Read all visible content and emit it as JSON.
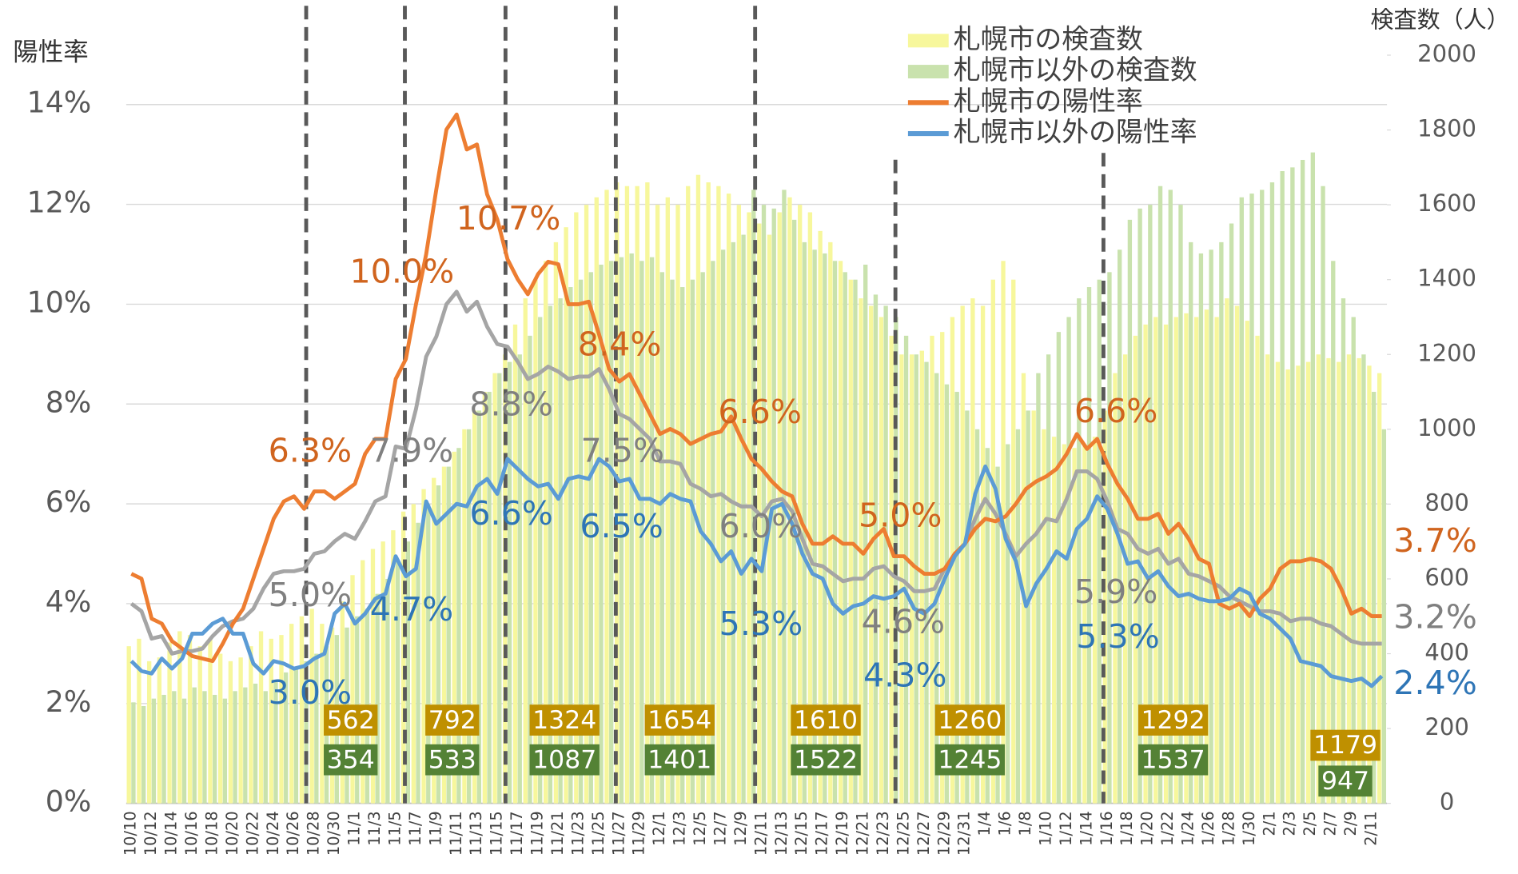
{
  "chart_data": {
    "type": "combo",
    "ylabel": "陽性率",
    "y2label": "検査数（人）",
    "ylim": [
      0,
      14
    ],
    "yticks": [
      {
        "value": 0,
        "label": "0%"
      },
      {
        "value": 2,
        "label": "2%"
      },
      {
        "value": 4,
        "label": "4%"
      },
      {
        "value": 6,
        "label": "6%"
      },
      {
        "value": 8,
        "label": "8%"
      },
      {
        "value": 10,
        "label": "10%"
      },
      {
        "value": 12,
        "label": "12%"
      },
      {
        "value": 14,
        "label": "14%"
      }
    ],
    "y2lim": [
      0,
      2000
    ],
    "y2ticks": [
      0,
      200,
      400,
      600,
      800,
      1000,
      1200,
      1400,
      1600,
      1800,
      2000
    ],
    "grid": true,
    "legend": "top-right",
    "categories": [
      "10/10",
      null,
      "10/12",
      null,
      "10/14",
      null,
      "10/16",
      null,
      "10/18",
      null,
      "10/20",
      null,
      "10/22",
      null,
      "10/24",
      null,
      "10/26",
      null,
      "10/28",
      null,
      "10/30",
      null,
      "11/1",
      null,
      "11/3",
      null,
      "11/5",
      null,
      "11/7",
      null,
      "11/9",
      null,
      "11/11",
      null,
      "11/13",
      null,
      "11/15",
      null,
      "11/17",
      null,
      "11/19",
      null,
      "11/21",
      null,
      "11/23",
      null,
      "11/25",
      null,
      "11/27",
      null,
      "11/29",
      null,
      "12/1",
      null,
      "12/3",
      null,
      "12/5",
      null,
      "12/7",
      null,
      "12/9",
      null,
      "12/11",
      null,
      "12/13",
      null,
      "12/15",
      null,
      "12/17",
      null,
      "12/19",
      null,
      "12/21",
      null,
      "12/23",
      null,
      "12/25",
      null,
      "12/27",
      null,
      "12/29",
      null,
      "12/31",
      null,
      "1/4",
      null,
      "1/6",
      null,
      "1/8",
      null,
      "1/10",
      null,
      "1/12",
      null,
      "1/14",
      null,
      "1/16",
      null,
      "1/18",
      null,
      "1/20",
      null,
      "1/22",
      null,
      "1/24",
      null,
      "1/26",
      null,
      "1/28",
      null,
      "1/30",
      null,
      "2/1",
      null,
      "2/3",
      null,
      "2/5",
      null,
      "2/7",
      null,
      "2/9",
      null,
      "2/11",
      null
    ],
    "series": [
      {
        "name": "札幌市の検査数",
        "type": "bar",
        "axis": "y2",
        "color": "#f7f79c",
        "values": [
          420,
          440,
          380,
          390,
          430,
          460,
          450,
          420,
          440,
          400,
          380,
          390,
          420,
          460,
          440,
          450,
          480,
          500,
          520,
          480,
          470,
          540,
          610,
          650,
          680,
          700,
          730,
          780,
          800,
          840,
          870,
          900,
          940,
          1000,
          1050,
          1100,
          1150,
          1200,
          1280,
          1350,
          1400,
          1450,
          1500,
          1540,
          1580,
          1600,
          1620,
          1640,
          1660,
          1650,
          1650,
          1660,
          1600,
          1620,
          1600,
          1650,
          1680,
          1660,
          1650,
          1630,
          1600,
          1580,
          1550,
          1520,
          1580,
          1620,
          1600,
          1580,
          1530,
          1500,
          1450,
          1400,
          1350,
          1330,
          1300,
          1250,
          1200,
          1200,
          1210,
          1250,
          1260,
          1300,
          1330,
          1350,
          1330,
          1400,
          1450,
          1400,
          1150,
          1050,
          1000,
          980,
          960,
          950,
          960,
          980,
          1050,
          1150,
          1200,
          1250,
          1280,
          1300,
          1280,
          1300,
          1310,
          1300,
          1320,
          1300,
          1350,
          1330,
          1290,
          1250,
          1200,
          1180,
          1160,
          1170,
          1180,
          1200,
          1190,
          1180,
          1200,
          1190,
          1170,
          1150
        ]
      },
      {
        "name": "札幌市以外の検査数",
        "type": "bar",
        "axis": "y2",
        "color": "#c9e2ad",
        "values": [
          270,
          260,
          280,
          290,
          300,
          280,
          310,
          300,
          290,
          280,
          300,
          310,
          320,
          300,
          330,
          350,
          360,
          380,
          400,
          420,
          450,
          470,
          500,
          520,
          560,
          600,
          650,
          700,
          750,
          800,
          850,
          900,
          950,
          1000,
          1050,
          1100,
          1150,
          1180,
          1200,
          1250,
          1300,
          1330,
          1350,
          1380,
          1400,
          1420,
          1440,
          1450,
          1460,
          1470,
          1450,
          1460,
          1420,
          1400,
          1380,
          1400,
          1420,
          1450,
          1480,
          1500,
          1520,
          1640,
          1600,
          1590,
          1640,
          1560,
          1500,
          1480,
          1470,
          1450,
          1420,
          1400,
          1440,
          1360,
          1330,
          1300,
          1250,
          1200,
          1180,
          1150,
          1120,
          1100,
          1050,
          1000,
          950,
          900,
          960,
          1000,
          1050,
          1150,
          1200,
          1260,
          1300,
          1350,
          1380,
          1400,
          1420,
          1480,
          1560,
          1590,
          1600,
          1650,
          1640,
          1600,
          1500,
          1470,
          1480,
          1500,
          1550,
          1620,
          1630,
          1640,
          1660,
          1690,
          1700,
          1720,
          1740,
          1650,
          1450,
          1350,
          1300,
          1200,
          1100,
          1000
        ]
      },
      {
        "name": "札幌市の陽性率",
        "type": "line",
        "color": "#ed7d31",
        "label_color": "#d0641e",
        "annotations": [
          "6.3%",
          "10.0%",
          "10.7%",
          "8.4%",
          "6.6%",
          "5.0%",
          "6.6%",
          "3.7%"
        ],
        "values": [
          4.6,
          4.5,
          3.7,
          3.6,
          3.25,
          3.1,
          2.95,
          2.9,
          2.85,
          3.2,
          3.6,
          3.9,
          4.5,
          5.1,
          5.7,
          6.05,
          6.15,
          5.9,
          6.25,
          6.25,
          6.1,
          6.25,
          6.4,
          7.0,
          7.3,
          7.3,
          8.5,
          8.9,
          10.0,
          11.0,
          12.3,
          13.5,
          13.8,
          13.1,
          13.2,
          12.2,
          11.7,
          10.9,
          10.5,
          10.2,
          10.6,
          10.85,
          10.8,
          10.0,
          10.0,
          10.05,
          9.4,
          8.7,
          8.45,
          8.6,
          8.2,
          7.8,
          7.4,
          7.5,
          7.4,
          7.2,
          7.3,
          7.4,
          7.45,
          7.75,
          7.3,
          6.9,
          6.7,
          6.45,
          6.25,
          6.15,
          5.6,
          5.2,
          5.2,
          5.35,
          5.2,
          5.2,
          5.0,
          5.3,
          5.5,
          4.95,
          4.95,
          4.75,
          4.6,
          4.6,
          4.7,
          5.0,
          5.2,
          5.5,
          5.7,
          5.65,
          5.75,
          6.0,
          6.3,
          6.45,
          6.55,
          6.7,
          7.0,
          7.4,
          7.1,
          7.3,
          6.8,
          6.4,
          6.1,
          5.7,
          5.7,
          5.8,
          5.4,
          5.6,
          5.3,
          4.9,
          4.8,
          4.0,
          3.9,
          4.0,
          3.75,
          4.1,
          4.3,
          4.7,
          4.85,
          4.85,
          4.9,
          4.85,
          4.7,
          4.3,
          3.8,
          3.9,
          3.75,
          3.75
        ]
      },
      {
        "name": "札幌市以外の陽性率",
        "type": "line",
        "color": "#5b9bd5",
        "label_color": "#2e75b6",
        "annotations": [
          "3.0%",
          "4.7%",
          "6.6%",
          "6.5%",
          "5.3%",
          "4.3%",
          "5.3%",
          "2.4%"
        ],
        "values": [
          2.85,
          2.65,
          2.6,
          2.9,
          2.7,
          2.9,
          3.4,
          3.4,
          3.6,
          3.7,
          3.4,
          3.4,
          2.8,
          2.6,
          2.85,
          2.8,
          2.7,
          2.75,
          2.9,
          3.0,
          3.8,
          4.0,
          3.6,
          3.8,
          4.1,
          4.2,
          4.95,
          4.55,
          4.7,
          6.05,
          5.6,
          5.8,
          6.0,
          5.95,
          6.35,
          6.5,
          6.2,
          6.9,
          6.7,
          6.5,
          6.35,
          6.4,
          6.1,
          6.5,
          6.55,
          6.5,
          6.9,
          6.75,
          6.45,
          6.5,
          6.1,
          6.1,
          6.0,
          6.2,
          6.1,
          6.05,
          5.45,
          5.2,
          4.85,
          5.05,
          4.6,
          4.9,
          4.65,
          5.9,
          6.0,
          5.6,
          5.0,
          4.6,
          4.5,
          4.0,
          3.8,
          3.95,
          4.0,
          4.15,
          4.1,
          4.15,
          4.3,
          3.9,
          3.8,
          4.0,
          4.5,
          4.95,
          5.2,
          6.2,
          6.75,
          6.3,
          5.3,
          4.85,
          3.95,
          4.4,
          4.7,
          5.05,
          4.9,
          5.5,
          5.7,
          6.15,
          5.9,
          5.4,
          4.8,
          4.85,
          4.5,
          4.65,
          4.35,
          4.15,
          4.2,
          4.1,
          4.05,
          4.05,
          4.1,
          4.3,
          4.2,
          3.8,
          3.7,
          3.5,
          3.3,
          2.85,
          2.8,
          2.75,
          2.55,
          2.5,
          2.45,
          2.5,
          2.35,
          2.55
        ]
      },
      {
        "type": "line",
        "color": "#a5a5a5",
        "label_color": "#808080",
        "annotations": [
          "5.0%",
          "7.9%",
          "8.8%",
          "7.5%",
          "6.0%",
          "4.6%",
          "5.9%",
          "3.2%"
        ],
        "values": [
          4.0,
          3.85,
          3.3,
          3.35,
          3.0,
          3.05,
          3.05,
          3.1,
          3.35,
          3.55,
          3.65,
          3.7,
          3.9,
          4.3,
          4.6,
          4.65,
          4.65,
          4.7,
          5.0,
          5.05,
          5.25,
          5.4,
          5.3,
          5.65,
          6.05,
          6.15,
          7.15,
          7.1,
          7.9,
          8.95,
          9.35,
          10.0,
          10.25,
          9.85,
          10.05,
          9.55,
          9.2,
          9.15,
          8.85,
          8.5,
          8.6,
          8.75,
          8.65,
          8.5,
          8.55,
          8.55,
          8.7,
          8.3,
          7.8,
          7.7,
          7.5,
          7.3,
          6.85,
          6.85,
          6.8,
          6.4,
          6.3,
          6.15,
          6.2,
          6.05,
          5.95,
          5.95,
          5.75,
          6.05,
          6.1,
          5.85,
          5.3,
          4.8,
          4.75,
          4.6,
          4.45,
          4.5,
          4.5,
          4.7,
          4.75,
          4.55,
          4.45,
          4.25,
          4.25,
          4.3,
          4.7,
          5.0,
          5.2,
          5.7,
          6.1,
          5.8,
          5.4,
          4.95,
          5.2,
          5.4,
          5.7,
          5.65,
          6.1,
          6.65,
          6.65,
          6.5,
          6.05,
          5.5,
          5.4,
          5.1,
          5.0,
          5.1,
          4.8,
          4.9,
          4.6,
          4.55,
          4.45,
          4.35,
          4.15,
          4.05,
          3.95,
          3.85,
          3.85,
          3.8,
          3.65,
          3.7,
          3.7,
          3.6,
          3.55,
          3.4,
          3.25,
          3.2,
          3.2,
          3.2
        ]
      }
    ],
    "weekly_tests": {
      "sapporo": [
        562,
        792,
        1324,
        1654,
        1610,
        1260,
        1292,
        1179
      ],
      "sapporo_color": "#bf9000",
      "outside": [
        354,
        533,
        1087,
        1401,
        1522,
        1245,
        1537,
        947
      ],
      "outside_color": "#548235"
    }
  }
}
